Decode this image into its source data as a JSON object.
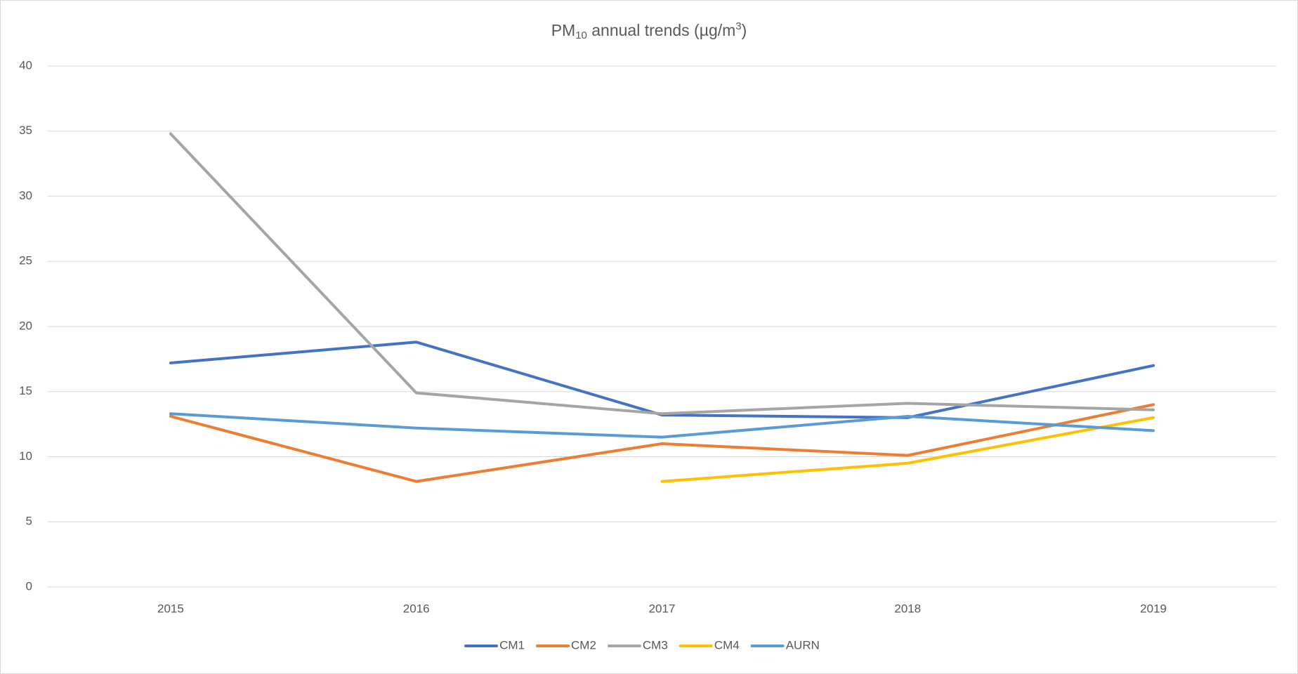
{
  "chart_data": {
    "type": "line",
    "title": [
      "PM",
      "10",
      " annual trends (µg/m",
      "3",
      ")"
    ],
    "categories": [
      "2015",
      "2016",
      "2017",
      "2018",
      "2019"
    ],
    "series": [
      {
        "name": "CM1",
        "color": "#4472c4",
        "values": [
          17.2,
          18.8,
          13.2,
          13.0,
          17.0
        ]
      },
      {
        "name": "CM2",
        "color": "#ed7d31",
        "values": [
          13.1,
          8.1,
          11.0,
          10.1,
          14.0
        ]
      },
      {
        "name": "CM3",
        "color": "#a5a5a5",
        "values": [
          34.8,
          14.9,
          13.3,
          14.1,
          13.6
        ]
      },
      {
        "name": "CM4",
        "color": "#ffc000",
        "values": [
          null,
          null,
          8.1,
          9.5,
          13.0
        ]
      },
      {
        "name": "AURN",
        "color": "#5b9bd5",
        "values": [
          13.3,
          12.2,
          11.5,
          13.1,
          12.0
        ]
      }
    ],
    "ylim": [
      0,
      40
    ],
    "yticks": [
      0,
      5,
      10,
      15,
      20,
      25,
      30,
      35,
      40
    ],
    "grid": true,
    "legend": "bottom"
  }
}
